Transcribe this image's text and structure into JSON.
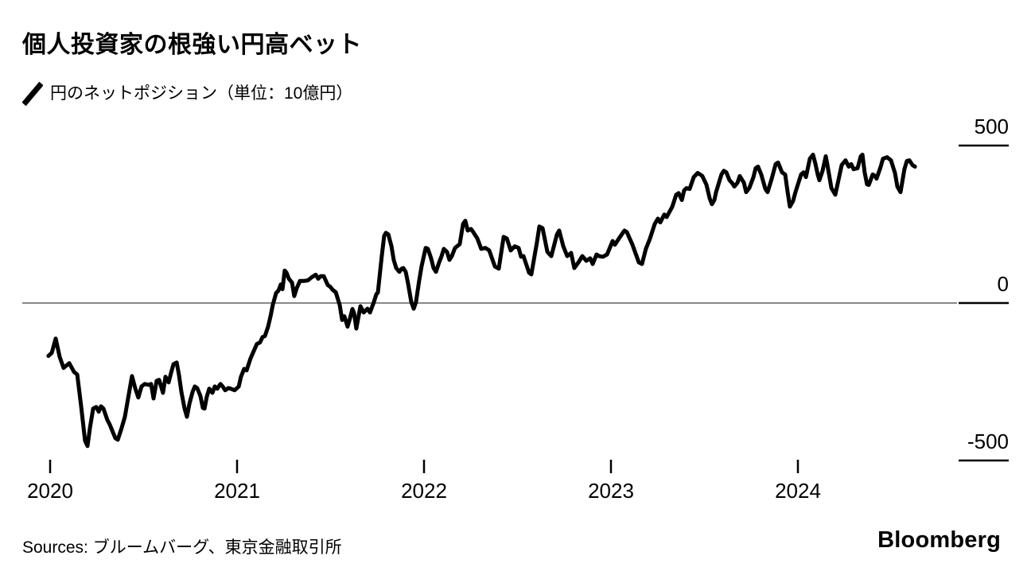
{
  "header": {
    "title": "個人投資家の根強い円高ベット",
    "legend_label": "円のネットポジション（単位：10億円）"
  },
  "footer": {
    "sources": "Sources: ブルームバーグ、東京金融取引所",
    "brand": "Bloomberg"
  },
  "colors": {
    "background": "#ffffff",
    "line": "#000000",
    "zero_line": "#606060",
    "axis_tick": "#000000",
    "text": "#000000"
  },
  "chart_data": {
    "type": "line",
    "title": "個人投資家の根強い円高ベット",
    "series_name": "円のネットポジション",
    "unit": "10億円",
    "legend_position": "top-left",
    "grid": "zero-line-only",
    "xlim": [
      2019.99,
      2024.65
    ],
    "ylim": [
      -560,
      520
    ],
    "x_ticks": [
      {
        "year": 2020,
        "label": "2020"
      },
      {
        "year": 2021,
        "label": "2021"
      },
      {
        "year": 2022,
        "label": "2022"
      },
      {
        "year": 2023,
        "label": "2023"
      },
      {
        "year": 2024,
        "label": "2024"
      }
    ],
    "y_ticks": [
      {
        "value": 500,
        "label": "500"
      },
      {
        "value": 0,
        "label": "0"
      },
      {
        "value": -500,
        "label": "-500"
      }
    ],
    "points": [
      [
        2019.991,
        -168
      ],
      [
        2020.009,
        -158
      ],
      [
        2020.03,
        -113
      ],
      [
        2020.051,
        -171
      ],
      [
        2020.072,
        -206
      ],
      [
        2020.102,
        -191
      ],
      [
        2020.128,
        -219
      ],
      [
        2020.145,
        -227
      ],
      [
        2020.166,
        -328
      ],
      [
        2020.187,
        -437
      ],
      [
        2020.2,
        -454
      ],
      [
        2020.213,
        -396
      ],
      [
        2020.23,
        -335
      ],
      [
        2020.247,
        -330
      ],
      [
        2020.26,
        -345
      ],
      [
        2020.272,
        -328
      ],
      [
        2020.285,
        -335
      ],
      [
        2020.306,
        -371
      ],
      [
        2020.319,
        -386
      ],
      [
        2020.349,
        -429
      ],
      [
        2020.362,
        -434
      ],
      [
        2020.383,
        -396
      ],
      [
        2020.4,
        -361
      ],
      [
        2020.421,
        -290
      ],
      [
        2020.438,
        -232
      ],
      [
        2020.455,
        -270
      ],
      [
        2020.472,
        -300
      ],
      [
        2020.489,
        -265
      ],
      [
        2020.506,
        -257
      ],
      [
        2020.528,
        -260
      ],
      [
        2020.54,
        -257
      ],
      [
        2020.553,
        -303
      ],
      [
        2020.57,
        -247
      ],
      [
        2020.583,
        -244
      ],
      [
        2020.604,
        -285
      ],
      [
        2020.617,
        -234
      ],
      [
        2020.634,
        -252
      ],
      [
        2020.647,
        -222
      ],
      [
        2020.66,
        -194
      ],
      [
        2020.677,
        -189
      ],
      [
        2020.689,
        -227
      ],
      [
        2020.702,
        -282
      ],
      [
        2020.719,
        -335
      ],
      [
        2020.732,
        -361
      ],
      [
        2020.745,
        -320
      ],
      [
        2020.762,
        -282
      ],
      [
        2020.774,
        -265
      ],
      [
        2020.787,
        -270
      ],
      [
        2020.804,
        -295
      ],
      [
        2020.817,
        -333
      ],
      [
        2020.826,
        -335
      ],
      [
        2020.838,
        -298
      ],
      [
        2020.851,
        -272
      ],
      [
        2020.868,
        -285
      ],
      [
        2020.881,
        -265
      ],
      [
        2020.894,
        -272
      ],
      [
        2020.911,
        -257
      ],
      [
        2020.923,
        -265
      ],
      [
        2020.936,
        -277
      ],
      [
        2020.953,
        -270
      ],
      [
        2020.966,
        -272
      ],
      [
        2020.987,
        -277
      ],
      [
        2021.009,
        -265
      ],
      [
        2021.021,
        -234
      ],
      [
        2021.038,
        -209
      ],
      [
        2021.051,
        -214
      ],
      [
        2021.072,
        -176
      ],
      [
        2021.085,
        -158
      ],
      [
        2021.106,
        -130
      ],
      [
        2021.123,
        -125
      ],
      [
        2021.136,
        -108
      ],
      [
        2021.149,
        -105
      ],
      [
        2021.166,
        -75
      ],
      [
        2021.179,
        -42
      ],
      [
        2021.191,
        -6
      ],
      [
        2021.209,
        32
      ],
      [
        2021.221,
        39
      ],
      [
        2021.234,
        59
      ],
      [
        2021.243,
        44
      ],
      [
        2021.255,
        103
      ],
      [
        2021.264,
        97
      ],
      [
        2021.277,
        77
      ],
      [
        2021.294,
        65
      ],
      [
        2021.306,
        22
      ],
      [
        2021.319,
        47
      ],
      [
        2021.336,
        70
      ],
      [
        2021.357,
        70
      ],
      [
        2021.379,
        72
      ],
      [
        2021.4,
        82
      ],
      [
        2021.421,
        90
      ],
      [
        2021.434,
        77
      ],
      [
        2021.447,
        85
      ],
      [
        2021.464,
        85
      ],
      [
        2021.485,
        57
      ],
      [
        2021.498,
        52
      ],
      [
        2021.511,
        42
      ],
      [
        2021.528,
        34
      ],
      [
        2021.549,
        -6
      ],
      [
        2021.562,
        -54
      ],
      [
        2021.574,
        -42
      ],
      [
        2021.591,
        -75
      ],
      [
        2021.604,
        -49
      ],
      [
        2021.617,
        -19
      ],
      [
        2021.626,
        -32
      ],
      [
        2021.638,
        -81
      ],
      [
        2021.66,
        -10
      ],
      [
        2021.677,
        -30
      ],
      [
        2021.698,
        -18
      ],
      [
        2021.711,
        -30
      ],
      [
        2021.732,
        3
      ],
      [
        2021.745,
        28
      ],
      [
        2021.753,
        33
      ],
      [
        2021.774,
        149
      ],
      [
        2021.787,
        213
      ],
      [
        2021.796,
        223
      ],
      [
        2021.809,
        218
      ],
      [
        2021.826,
        180
      ],
      [
        2021.838,
        137
      ],
      [
        2021.851,
        111
      ],
      [
        2021.868,
        99
      ],
      [
        2021.881,
        109
      ],
      [
        2021.889,
        111
      ],
      [
        2021.902,
        99
      ],
      [
        2021.915,
        61
      ],
      [
        2021.932,
        3
      ],
      [
        2021.945,
        -18
      ],
      [
        2021.957,
        3
      ],
      [
        2021.974,
        71
      ],
      [
        2021.987,
        116
      ],
      [
        2022.009,
        175
      ],
      [
        2022.021,
        172
      ],
      [
        2022.038,
        142
      ],
      [
        2022.051,
        111
      ],
      [
        2022.064,
        99
      ],
      [
        2022.081,
        129
      ],
      [
        2022.094,
        149
      ],
      [
        2022.106,
        172
      ],
      [
        2022.123,
        162
      ],
      [
        2022.136,
        137
      ],
      [
        2022.149,
        149
      ],
      [
        2022.166,
        175
      ],
      [
        2022.191,
        187
      ],
      [
        2022.209,
        251
      ],
      [
        2022.221,
        261
      ],
      [
        2022.234,
        230
      ],
      [
        2022.251,
        235
      ],
      [
        2022.264,
        225
      ],
      [
        2022.285,
        205
      ],
      [
        2022.306,
        172
      ],
      [
        2022.328,
        175
      ],
      [
        2022.349,
        167
      ],
      [
        2022.379,
        116
      ],
      [
        2022.4,
        109
      ],
      [
        2022.426,
        210
      ],
      [
        2022.443,
        205
      ],
      [
        2022.464,
        167
      ],
      [
        2022.485,
        180
      ],
      [
        2022.506,
        175
      ],
      [
        2022.519,
        147
      ],
      [
        2022.532,
        149
      ],
      [
        2022.562,
        96
      ],
      [
        2022.574,
        91
      ],
      [
        2022.604,
        192
      ],
      [
        2022.617,
        243
      ],
      [
        2022.634,
        238
      ],
      [
        2022.66,
        162
      ],
      [
        2022.681,
        149
      ],
      [
        2022.711,
        218
      ],
      [
        2022.723,
        230
      ],
      [
        2022.745,
        180
      ],
      [
        2022.766,
        149
      ],
      [
        2022.787,
        159
      ],
      [
        2022.804,
        111
      ],
      [
        2022.826,
        129
      ],
      [
        2022.847,
        149
      ],
      [
        2022.868,
        134
      ],
      [
        2022.889,
        142
      ],
      [
        2022.902,
        124
      ],
      [
        2022.923,
        154
      ],
      [
        2022.936,
        149
      ],
      [
        2022.957,
        147
      ],
      [
        2022.979,
        154
      ],
      [
        2023.009,
        197
      ],
      [
        2023.021,
        185
      ],
      [
        2023.043,
        205
      ],
      [
        2023.072,
        230
      ],
      [
        2023.085,
        225
      ],
      [
        2023.115,
        185
      ],
      [
        2023.149,
        129
      ],
      [
        2023.166,
        124
      ],
      [
        2023.187,
        172
      ],
      [
        2023.209,
        205
      ],
      [
        2023.234,
        251
      ],
      [
        2023.251,
        268
      ],
      [
        2023.264,
        256
      ],
      [
        2023.285,
        281
      ],
      [
        2023.298,
        273
      ],
      [
        2023.328,
        306
      ],
      [
        2023.349,
        344
      ],
      [
        2023.362,
        349
      ],
      [
        2023.379,
        327
      ],
      [
        2023.391,
        357
      ],
      [
        2023.404,
        365
      ],
      [
        2023.421,
        362
      ],
      [
        2023.443,
        400
      ],
      [
        2023.464,
        413
      ],
      [
        2023.477,
        408
      ],
      [
        2023.489,
        403
      ],
      [
        2023.511,
        375
      ],
      [
        2023.528,
        332
      ],
      [
        2023.54,
        314
      ],
      [
        2023.553,
        327
      ],
      [
        2023.562,
        352
      ],
      [
        2023.591,
        408
      ],
      [
        2023.604,
        420
      ],
      [
        2023.617,
        415
      ],
      [
        2023.634,
        390
      ],
      [
        2023.647,
        382
      ],
      [
        2023.66,
        370
      ],
      [
        2023.677,
        382
      ],
      [
        2023.689,
        403
      ],
      [
        2023.711,
        382
      ],
      [
        2023.723,
        352
      ],
      [
        2023.74,
        365
      ],
      [
        2023.762,
        400
      ],
      [
        2023.774,
        428
      ],
      [
        2023.787,
        433
      ],
      [
        2023.804,
        408
      ],
      [
        2023.826,
        362
      ],
      [
        2023.838,
        352
      ],
      [
        2023.86,
        395
      ],
      [
        2023.881,
        441
      ],
      [
        2023.894,
        446
      ],
      [
        2023.915,
        415
      ],
      [
        2023.932,
        408
      ],
      [
        2023.945,
        352
      ],
      [
        2023.957,
        306
      ],
      [
        2023.974,
        324
      ],
      [
        2023.987,
        352
      ],
      [
        2024.017,
        408
      ],
      [
        2024.03,
        415
      ],
      [
        2024.043,
        400
      ],
      [
        2024.064,
        458
      ],
      [
        2024.081,
        471
      ],
      [
        2024.094,
        441
      ],
      [
        2024.106,
        408
      ],
      [
        2024.115,
        390
      ],
      [
        2024.132,
        420
      ],
      [
        2024.149,
        466
      ],
      [
        2024.157,
        441
      ],
      [
        2024.179,
        365
      ],
      [
        2024.2,
        344
      ],
      [
        2024.234,
        438
      ],
      [
        2024.255,
        453
      ],
      [
        2024.272,
        433
      ],
      [
        2024.285,
        441
      ],
      [
        2024.298,
        425
      ],
      [
        2024.319,
        428
      ],
      [
        2024.336,
        466
      ],
      [
        2024.345,
        471
      ],
      [
        2024.357,
        415
      ],
      [
        2024.37,
        377
      ],
      [
        2024.379,
        375
      ],
      [
        2024.4,
        408
      ],
      [
        2024.413,
        403
      ],
      [
        2024.421,
        395
      ],
      [
        2024.443,
        433
      ],
      [
        2024.455,
        458
      ],
      [
        2024.477,
        463
      ],
      [
        2024.498,
        453
      ],
      [
        2024.519,
        413
      ],
      [
        2024.532,
        370
      ],
      [
        2024.549,
        352
      ],
      [
        2024.57,
        425
      ],
      [
        2024.583,
        451
      ],
      [
        2024.596,
        453
      ],
      [
        2024.613,
        438
      ],
      [
        2024.626,
        433
      ]
    ]
  }
}
